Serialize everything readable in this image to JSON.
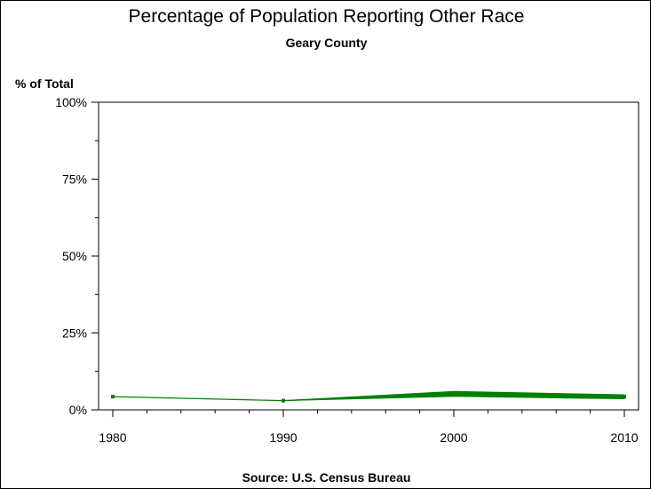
{
  "chart_data": {
    "type": "line",
    "title": "Percentage of Population Reporting Other Race",
    "subtitle": "Geary County",
    "ylabel": "% of Total",
    "xlabel": "",
    "source": "Source: U.S. Census Bureau",
    "x": [
      1980,
      1990,
      2000,
      2010
    ],
    "x_tick_labels": [
      "1980",
      "1990",
      "2000",
      "2010"
    ],
    "y_tick_labels": [
      "0%",
      "25%",
      "50%",
      "75%",
      "100%"
    ],
    "y_ticks": [
      0,
      25,
      50,
      75,
      100
    ],
    "xlim": [
      1980,
      2010
    ],
    "ylim": [
      0,
      100
    ],
    "series": [
      {
        "values": [
          4.3,
          3.0,
          5.3,
          4.3
        ]
      }
    ],
    "band": {
      "x": [
        1990,
        2000,
        2010
      ],
      "lower": [
        3.0,
        4.4,
        3.6
      ],
      "upper": [
        3.0,
        6.0,
        4.9
      ]
    },
    "grid": false,
    "colors": {
      "line": "#008000",
      "axis": "#000000"
    }
  }
}
